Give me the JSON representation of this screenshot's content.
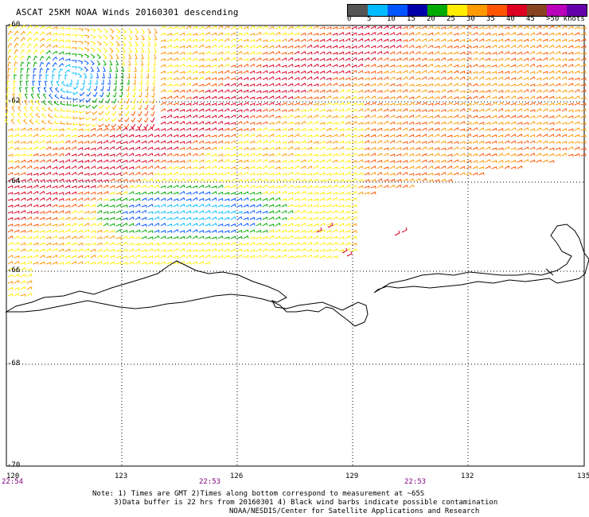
{
  "title": "ASCAT 25KM NOAA Winds 20160301 descending",
  "scale": {
    "colors": [
      "#555555",
      "#00bbff",
      "#0055ff",
      "#0000aa",
      "#00aa00",
      "#ffee00",
      "#ff9900",
      "#ff5500",
      "#dd0022",
      "#884422",
      "#bb00bb",
      "#6600aa"
    ],
    "labels": [
      "0",
      "5",
      "10",
      "15",
      "20",
      "25",
      "30",
      "35",
      "40",
      "45",
      ">50 knots"
    ]
  },
  "lat_labels": [
    "-60",
    "-62",
    "-64",
    "-66",
    "-68",
    "-70"
  ],
  "lon_labels": [
    "120",
    "123",
    "126",
    "129",
    "132",
    "135"
  ],
  "times": [
    "22:54",
    "22:53",
    "22:53"
  ],
  "notes": {
    "line1": "Note: 1) Times are GMT 2)Times along bottom correspond to measurement at ~65S",
    "line2": "3)Data buffer is 22 hrs from 20160301 4) Black wind barbs indicate possible contamination",
    "line3": "NOAA/NESDIS/Center for Satellite Applications and Research"
  }
}
